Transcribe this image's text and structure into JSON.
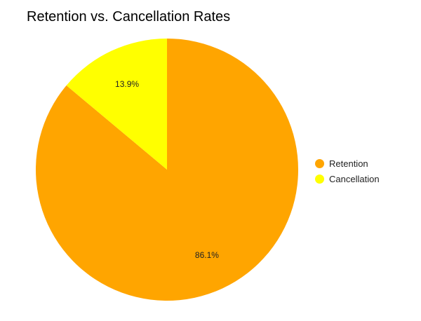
{
  "chart_data": {
    "type": "pie",
    "title": "Retention vs. Cancellation Rates",
    "categories": [
      "Retention",
      "Cancellation"
    ],
    "values": [
      86.1,
      13.9
    ],
    "value_labels": [
      "86.1%",
      "13.9%"
    ],
    "colors": [
      "#FFA500",
      "#FFFF00"
    ],
    "legend_position": "right"
  }
}
